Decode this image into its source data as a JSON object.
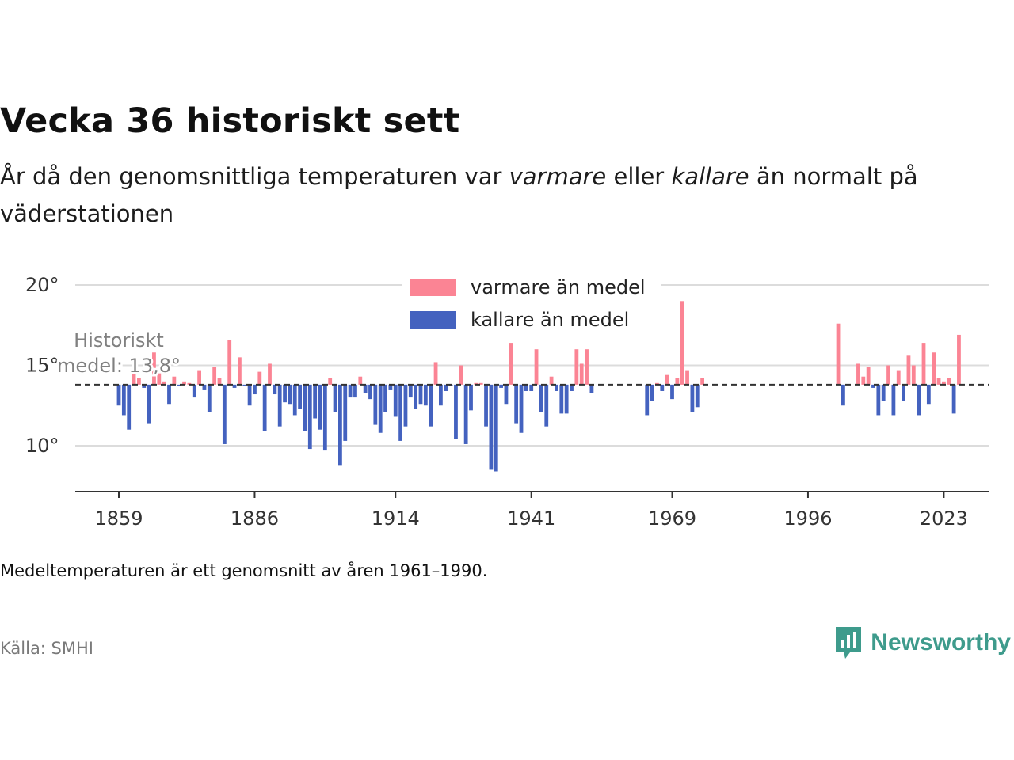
{
  "header": {
    "title": "Vecka 36 historiskt sett",
    "subtitle_parts": [
      "År då den genomsnittliga temperaturen var ",
      "varmare",
      " eller ",
      "kallare",
      " än normalt på väderstationen"
    ]
  },
  "chart_data": {
    "type": "bar",
    "baseline": 13.8,
    "baseline_label_line1": "Historiskt",
    "baseline_label_line2": "medel: 13,8°",
    "ylim": [
      7.2,
      20.5
    ],
    "y_ticks": [
      10,
      15,
      20
    ],
    "y_tick_labels": [
      "10°",
      "15°",
      "20°"
    ],
    "x_ticks": [
      1859,
      1886,
      1914,
      1941,
      1969,
      1996,
      2023
    ],
    "x_tick_labels": [
      "1859",
      "1886",
      "1914",
      "1941",
      "1969",
      "1996",
      "2023"
    ],
    "xlim": [
      1850,
      2032
    ],
    "grid": true,
    "legend": {
      "position": "top-center",
      "items": [
        {
          "label": "varmare än medel",
          "color": "#fb8494"
        },
        {
          "label": "kallare än medel",
          "color": "#4462bf"
        }
      ]
    },
    "colors": {
      "warm": "#fb8494",
      "cold": "#4462bf",
      "baseline": "#333333",
      "grid": "#dcdcdc"
    },
    "values": [
      {
        "x": 1859,
        "y": 12.5
      },
      {
        "x": 1860,
        "y": 11.9
      },
      {
        "x": 1861,
        "y": 11.0
      },
      {
        "x": 1862,
        "y": 15.0
      },
      {
        "x": 1863,
        "y": 14.2
      },
      {
        "x": 1864,
        "y": 13.6
      },
      {
        "x": 1865,
        "y": 11.4
      },
      {
        "x": 1866,
        "y": 15.8
      },
      {
        "x": 1867,
        "y": 14.5
      },
      {
        "x": 1868,
        "y": 14.0
      },
      {
        "x": 1869,
        "y": 12.6
      },
      {
        "x": 1870,
        "y": 14.3
      },
      {
        "x": 1871,
        "y": 13.7
      },
      {
        "x": 1872,
        "y": 14.0
      },
      {
        "x": 1873,
        "y": 13.9
      },
      {
        "x": 1874,
        "y": 13.0
      },
      {
        "x": 1875,
        "y": 14.7
      },
      {
        "x": 1876,
        "y": 13.5
      },
      {
        "x": 1877,
        "y": 12.1
      },
      {
        "x": 1878,
        "y": 14.9
      },
      {
        "x": 1879,
        "y": 14.2
      },
      {
        "x": 1880,
        "y": 10.1
      },
      {
        "x": 1881,
        "y": 16.6
      },
      {
        "x": 1882,
        "y": 13.6
      },
      {
        "x": 1883,
        "y": 15.5
      },
      {
        "x": 1884,
        "y": 13.7
      },
      {
        "x": 1885,
        "y": 12.5
      },
      {
        "x": 1886,
        "y": 13.2
      },
      {
        "x": 1887,
        "y": 14.6
      },
      {
        "x": 1888,
        "y": 10.9
      },
      {
        "x": 1889,
        "y": 15.1
      },
      {
        "x": 1890,
        "y": 13.2
      },
      {
        "x": 1891,
        "y": 11.2
      },
      {
        "x": 1892,
        "y": 12.7
      },
      {
        "x": 1893,
        "y": 12.6
      },
      {
        "x": 1894,
        "y": 11.9
      },
      {
        "x": 1895,
        "y": 12.3
      },
      {
        "x": 1896,
        "y": 10.9
      },
      {
        "x": 1897,
        "y": 9.8
      },
      {
        "x": 1898,
        "y": 11.7
      },
      {
        "x": 1899,
        "y": 11.0
      },
      {
        "x": 1900,
        "y": 9.7
      },
      {
        "x": 1901,
        "y": 14.2
      },
      {
        "x": 1902,
        "y": 12.1
      },
      {
        "x": 1903,
        "y": 8.8
      },
      {
        "x": 1904,
        "y": 10.3
      },
      {
        "x": 1905,
        "y": 13.0
      },
      {
        "x": 1906,
        "y": 13.0
      },
      {
        "x": 1907,
        "y": 14.3
      },
      {
        "x": 1908,
        "y": 13.3
      },
      {
        "x": 1909,
        "y": 12.9
      },
      {
        "x": 1910,
        "y": 11.3
      },
      {
        "x": 1911,
        "y": 10.8
      },
      {
        "x": 1912,
        "y": 12.1
      },
      {
        "x": 1913,
        "y": 13.5
      },
      {
        "x": 1914,
        "y": 11.8
      },
      {
        "x": 1915,
        "y": 10.3
      },
      {
        "x": 1916,
        "y": 11.2
      },
      {
        "x": 1917,
        "y": 13.0
      },
      {
        "x": 1918,
        "y": 12.3
      },
      {
        "x": 1919,
        "y": 12.6
      },
      {
        "x": 1920,
        "y": 12.5
      },
      {
        "x": 1921,
        "y": 11.2
      },
      {
        "x": 1922,
        "y": 15.2
      },
      {
        "x": 1923,
        "y": 12.5
      },
      {
        "x": 1924,
        "y": 13.4
      },
      {
        "x": 1925,
        "y": 13.7
      },
      {
        "x": 1926,
        "y": 10.4
      },
      {
        "x": 1927,
        "y": 15.0
      },
      {
        "x": 1928,
        "y": 10.1
      },
      {
        "x": 1929,
        "y": 12.2
      },
      {
        "x": 1930,
        "y": 13.9
      },
      {
        "x": 1931,
        "y": 13.9
      },
      {
        "x": 1932,
        "y": 11.2
      },
      {
        "x": 1933,
        "y": 8.5
      },
      {
        "x": 1934,
        "y": 8.4
      },
      {
        "x": 1935,
        "y": 13.6
      },
      {
        "x": 1936,
        "y": 12.6
      },
      {
        "x": 1937,
        "y": 16.4
      },
      {
        "x": 1938,
        "y": 11.4
      },
      {
        "x": 1939,
        "y": 10.8
      },
      {
        "x": 1940,
        "y": 13.4
      },
      {
        "x": 1941,
        "y": 13.4
      },
      {
        "x": 1942,
        "y": 16.0
      },
      {
        "x": 1943,
        "y": 12.1
      },
      {
        "x": 1944,
        "y": 11.2
      },
      {
        "x": 1945,
        "y": 14.3
      },
      {
        "x": 1946,
        "y": 13.4
      },
      {
        "x": 1947,
        "y": 12.0
      },
      {
        "x": 1948,
        "y": 12.0
      },
      {
        "x": 1949,
        "y": 13.4
      },
      {
        "x": 1950,
        "y": 16.0
      },
      {
        "x": 1951,
        "y": 15.1
      },
      {
        "x": 1952,
        "y": 16.0
      },
      {
        "x": 1953,
        "y": 13.3
      },
      {
        "x": 1964,
        "y": 11.9
      },
      {
        "x": 1965,
        "y": 12.8
      },
      {
        "x": 1966,
        "y": 13.9
      },
      {
        "x": 1967,
        "y": 13.4
      },
      {
        "x": 1968,
        "y": 14.4
      },
      {
        "x": 1969,
        "y": 12.9
      },
      {
        "x": 1970,
        "y": 14.2
      },
      {
        "x": 1971,
        "y": 19.0
      },
      {
        "x": 1972,
        "y": 14.7
      },
      {
        "x": 1973,
        "y": 12.1
      },
      {
        "x": 1974,
        "y": 12.4
      },
      {
        "x": 1975,
        "y": 14.2
      },
      {
        "x": 2002,
        "y": 17.6
      },
      {
        "x": 2003,
        "y": 12.5
      },
      {
        "x": 2006,
        "y": 15.1
      },
      {
        "x": 2007,
        "y": 14.3
      },
      {
        "x": 2008,
        "y": 14.9
      },
      {
        "x": 2009,
        "y": 13.6
      },
      {
        "x": 2010,
        "y": 11.9
      },
      {
        "x": 2011,
        "y": 12.8
      },
      {
        "x": 2012,
        "y": 15.0
      },
      {
        "x": 2013,
        "y": 11.9
      },
      {
        "x": 2014,
        "y": 14.7
      },
      {
        "x": 2015,
        "y": 12.8
      },
      {
        "x": 2016,
        "y": 15.6
      },
      {
        "x": 2017,
        "y": 15.0
      },
      {
        "x": 2018,
        "y": 11.9
      },
      {
        "x": 2019,
        "y": 16.4
      },
      {
        "x": 2020,
        "y": 12.6
      },
      {
        "x": 2021,
        "y": 15.8
      },
      {
        "x": 2022,
        "y": 14.2
      },
      {
        "x": 2023,
        "y": 14.0
      },
      {
        "x": 2024,
        "y": 14.2
      },
      {
        "x": 2025,
        "y": 12.0
      },
      {
        "x": 2026,
        "y": 16.9
      }
    ]
  },
  "footer": {
    "note": "Medeltemperaturen är ett genomsnitt av åren 1961–1990.",
    "source": "Källa: SMHI",
    "brand_name": "Newsworthy",
    "brand_icon": "newsworthy-logo-icon"
  }
}
